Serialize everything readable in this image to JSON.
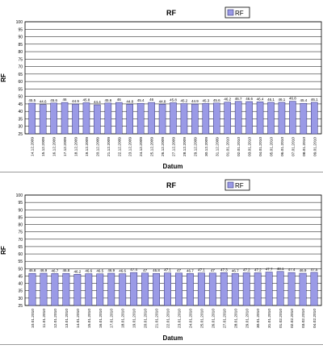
{
  "colors": {
    "bar": "#9a9ae6",
    "bar_edge": "#33337a",
    "grid": "#000000",
    "plot_bg": "#ffffff"
  },
  "chart_data": [
    {
      "type": "bar",
      "title": "RF",
      "legend": "RF",
      "xlabel": "Datum",
      "ylabel": "RF",
      "ylim": [
        25,
        100
      ],
      "yticks": [
        25,
        30,
        35,
        40,
        45,
        50,
        55,
        60,
        65,
        70,
        75,
        80,
        85,
        90,
        95,
        100
      ],
      "grid": true,
      "legend_position": "top-center",
      "categories": [
        "14.12.2009",
        "15.12.2009",
        "16.12.2009",
        "17.12.2009",
        "18.12.2009",
        "19.12.2009",
        "20.12.2009",
        "21.12.2009",
        "22.12.2009",
        "23.12.2009",
        "24.12.2009",
        "25.12.2009",
        "26.12.2009",
        "27.12.2009",
        "28.12.2009",
        "29.12.2009",
        "30.12.2009",
        "31.12.2009",
        "01.01.2010",
        "02.01.2010",
        "03.01.2010",
        "04.01.2010",
        "05.01.2010",
        "06.01.2010",
        "07.01.2010",
        "08.01.2010",
        "09.01.2010"
      ],
      "values": [
        45.5,
        44.6,
        45.6,
        46,
        44.9,
        45.8,
        44.4,
        45.6,
        46,
        44.8,
        45.4,
        46,
        44.8,
        45.8,
        45.2,
        44.9,
        45.3,
        45.6,
        46.2,
        46.7,
        46.6,
        46.4,
        46.1,
        46.1,
        46.8,
        45.4,
        46.1
      ],
      "labels": [
        "45.5",
        "44.6",
        "45.6",
        "46",
        "44.9",
        "45.8",
        "44.4",
        "45.6",
        "46",
        "44.8",
        "45.4",
        "46",
        "44.8",
        "45.8",
        "45.2",
        "44.9",
        "45.3",
        "45.6",
        "46.2",
        "46.7",
        "46.6",
        "46.4",
        "46.1",
        "46.1",
        "46.8",
        "45.4",
        "46.1"
      ]
    },
    {
      "type": "bar",
      "title": "RF",
      "legend": "RF",
      "xlabel": "Datum",
      "ylabel": "RF",
      "ylim": [
        25,
        100
      ],
      "yticks": [
        25,
        30,
        35,
        40,
        45,
        50,
        55,
        60,
        65,
        70,
        75,
        80,
        85,
        90,
        95,
        100
      ],
      "grid": true,
      "legend_position": "top-center",
      "categories": [
        "10.01.2010",
        "11.01.2010",
        "12.01.2010",
        "13.01.2010",
        "14.01.2010",
        "15.01.2010",
        "16.01.2010",
        "17.01.2010",
        "18.01.2010",
        "19.01.2010",
        "20.01.2010",
        "21.01.2010",
        "22.01.2010",
        "23.01.2010",
        "24.01.2010",
        "25.01.2010",
        "26.01.2010",
        "27.01.2010",
        "28.01.2010",
        "29.01.2010",
        "30.01.2010",
        "31.01.2010",
        "01.02.2010",
        "02.02.2010",
        "03.02.2010",
        "04.02.2010"
      ],
      "values": [
        46.8,
        46.9,
        46.7,
        46.8,
        46.2,
        46.6,
        46.5,
        46.9,
        46.6,
        47.4,
        47,
        46.8,
        47.1,
        47,
        46.7,
        47.1,
        47,
        47.3,
        46.7,
        47.2,
        47.2,
        47.7,
        48.1,
        47.4,
        46.9,
        47.5
      ],
      "labels": [
        "46.8",
        "46.9",
        "46.7",
        "46.8",
        "46.2",
        "46.6",
        "46.5",
        "46.9",
        "46.6",
        "47.4",
        "47",
        "46.8",
        "47.1",
        "47",
        "46.7",
        "47.1",
        "47",
        "47.3",
        "46.7",
        "47.2",
        "47.2",
        "47.7",
        "48.1",
        "47.4",
        "46.9",
        "47.5"
      ]
    }
  ]
}
